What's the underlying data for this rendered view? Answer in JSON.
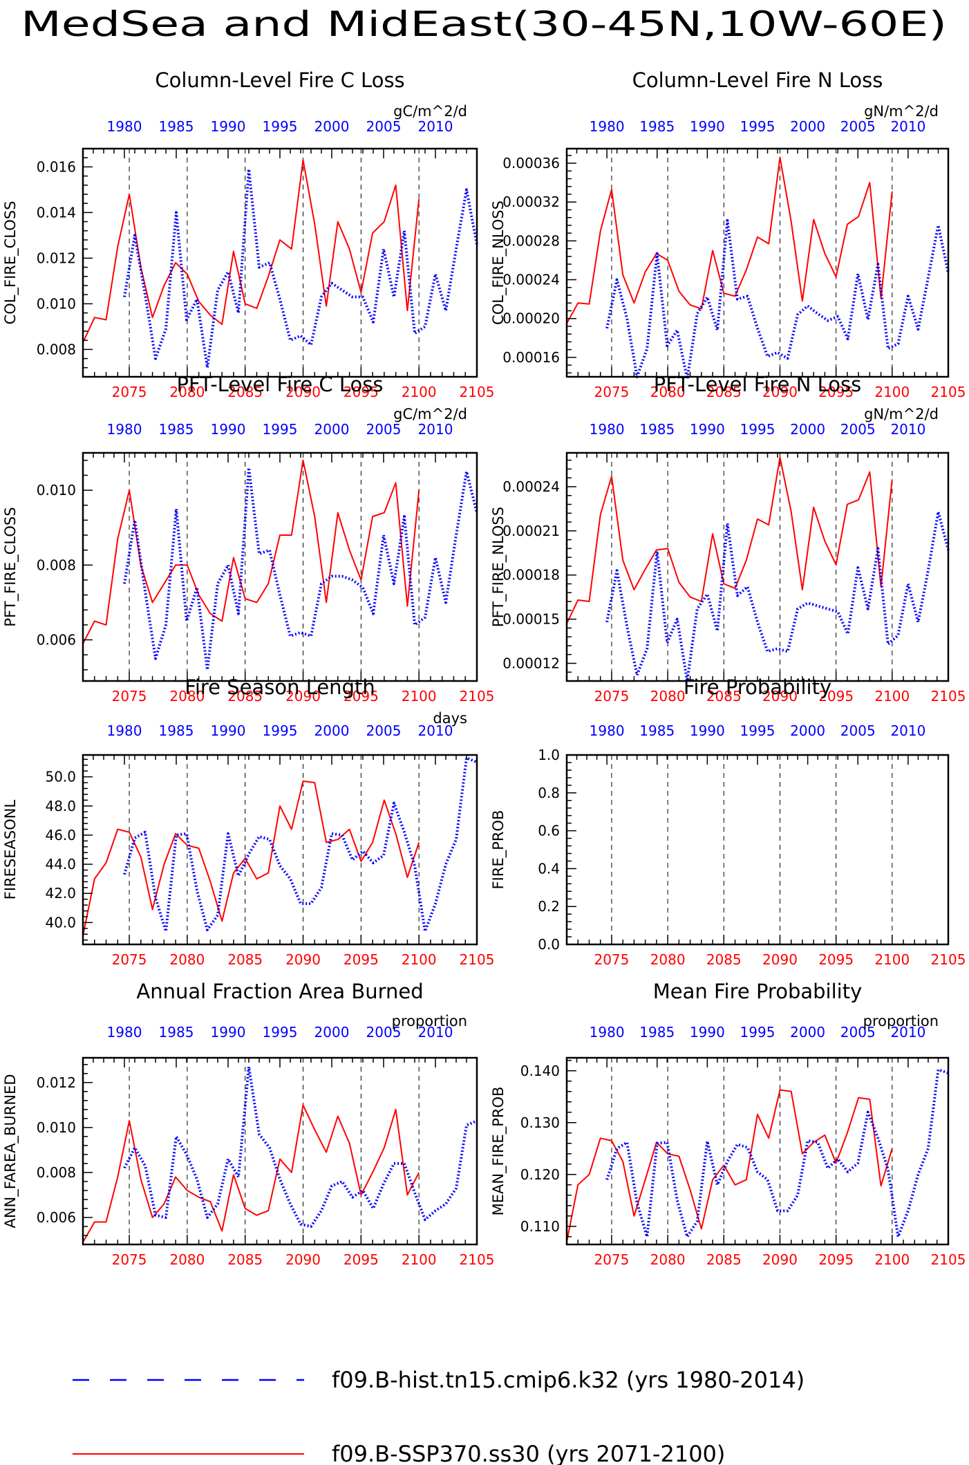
{
  "title": "MedSea and MidEast(30-45N,10W-60E)",
  "legend": [
    {
      "label": "f09.B-hist.tn15.cmip6.k32 (yrs 1980-2014)",
      "color": "#0000ff",
      "dash": true
    },
    {
      "label": "f09.B-SSP370.ss30 (yrs 2071-2100)",
      "color": "#ff0000",
      "dash": false
    }
  ],
  "colors": {
    "hist": "#0000ff",
    "future": "#ff0000"
  },
  "chart_data": [
    {
      "type": "line",
      "title": "Column-Level Fire C Loss",
      "ylabel": "COL_FIRE_CLOSS",
      "units": "gC/m^2/d",
      "ylim": [
        0.0068,
        0.0168
      ],
      "yticks": [
        0.008,
        0.01,
        0.012,
        0.014,
        0.016
      ],
      "ytick_labels": [
        "0.008",
        "0.010",
        "0.012",
        "0.014",
        "0.016"
      ],
      "x_bottom": {
        "range": [
          2071,
          2105
        ],
        "ticks": [
          2075,
          2080,
          2085,
          2090,
          2095,
          2100,
          2105
        ]
      },
      "x_top": {
        "range": [
          1976,
          2014
        ],
        "ticks": [
          1980,
          1985,
          1990,
          1995,
          2000,
          2005,
          2010
        ]
      },
      "series": [
        {
          "x_start": 2071,
          "values": [
            0.0083,
            0.0094,
            0.0093,
            0.0125,
            0.0148,
            0.0116,
            0.0094,
            0.0108,
            0.0118,
            0.0113,
            0.0101,
            0.0095,
            0.0091,
            0.0123,
            0.01,
            0.0098,
            0.0112,
            0.0128,
            0.0124,
            0.0163,
            0.0135,
            0.0099,
            0.0136,
            0.0124,
            0.0105,
            0.0131,
            0.0136,
            0.0152,
            0.0097,
            0.0146
          ]
        },
        {
          "x_start": 1980,
          "values": [
            0.0103,
            0.013,
            0.0104,
            0.0076,
            0.0089,
            0.014,
            0.0093,
            0.0102,
            0.0072,
            0.0106,
            0.0114,
            0.0096,
            0.0159,
            0.0116,
            0.0118,
            0.0102,
            0.0084,
            0.0086,
            0.0082,
            0.0103,
            0.0109,
            0.0106,
            0.0103,
            0.0103,
            0.0092,
            0.0124,
            0.0103,
            0.0132,
            0.0087,
            0.009,
            0.0113,
            0.0097,
            0.0124,
            0.015,
            0.0126
          ]
        }
      ]
    },
    {
      "type": "line",
      "title": "Column-Level Fire N Loss",
      "ylabel": "COL_FIRE_NLOSS",
      "units": "gN/m^2/d",
      "ylim": [
        0.00014,
        0.000375
      ],
      "yticks": [
        0.00016,
        0.0002,
        0.00024,
        0.00028,
        0.00032,
        0.00036
      ],
      "ytick_labels": [
        "0.00016",
        "0.00020",
        "0.00024",
        "0.00028",
        "0.00032",
        "0.00036"
      ],
      "x_bottom": {
        "range": [
          2071,
          2105
        ],
        "ticks": [
          2075,
          2080,
          2085,
          2090,
          2095,
          2100,
          2105
        ]
      },
      "x_top": {
        "range": [
          1976,
          2014
        ],
        "ticks": [
          1980,
          1985,
          1990,
          1995,
          2000,
          2005,
          2010
        ]
      },
      "series": [
        {
          "x_start": 2071,
          "values": [
            0.000195,
            0.000216,
            0.000215,
            0.00029,
            0.000333,
            0.000245,
            0.000216,
            0.000248,
            0.000267,
            0.00026,
            0.000228,
            0.000214,
            0.00021,
            0.00027,
            0.000226,
            0.000223,
            0.00025,
            0.000284,
            0.000277,
            0.000366,
            0.0003,
            0.000218,
            0.000302,
            0.000267,
            0.000243,
            0.000297,
            0.000305,
            0.00034,
            0.000221,
            0.000331
          ]
        },
        {
          "x_start": 1980,
          "values": [
            0.00019,
            0.00024,
            0.0002,
            0.00014,
            0.000169,
            0.000267,
            0.000172,
            0.000188,
            0.000138,
            0.000205,
            0.000222,
            0.000188,
            0.000301,
            0.00022,
            0.000223,
            0.00019,
            0.000161,
            0.000165,
            0.000159,
            0.000204,
            0.000213,
            0.000205,
            0.000198,
            0.000202,
            0.000179,
            0.000246,
            0.000199,
            0.000256,
            0.000169,
            0.000174,
            0.000223,
            0.000189,
            0.000242,
            0.000296,
            0.000247
          ]
        }
      ]
    },
    {
      "type": "line",
      "title": "PFT-Level Fire C Loss",
      "ylabel": "PFT_FIRE_CLOSS",
      "units": "gC/m^2/d",
      "ylim": [
        0.0049,
        0.011
      ],
      "yticks": [
        0.006,
        0.008,
        0.01
      ],
      "ytick_labels": [
        "0.006",
        "0.008",
        "0.010"
      ],
      "x_bottom": {
        "range": [
          2071,
          2105
        ],
        "ticks": [
          2075,
          2080,
          2085,
          2090,
          2095,
          2100,
          2105
        ]
      },
      "x_top": {
        "range": [
          1976,
          2014
        ],
        "ticks": [
          1980,
          1985,
          1990,
          1995,
          2000,
          2005,
          2010
        ]
      },
      "series": [
        {
          "x_start": 2071,
          "values": [
            0.0059,
            0.0065,
            0.0064,
            0.0087,
            0.01,
            0.008,
            0.007,
            0.0075,
            0.008,
            0.008,
            0.0072,
            0.0067,
            0.0065,
            0.0082,
            0.0071,
            0.007,
            0.0075,
            0.0088,
            0.0088,
            0.0108,
            0.0093,
            0.007,
            0.0094,
            0.0084,
            0.0076,
            0.0093,
            0.0094,
            0.0102,
            0.0069,
            0.01
          ]
        },
        {
          "x_start": 1980,
          "values": [
            0.0075,
            0.0092,
            0.0073,
            0.0055,
            0.0064,
            0.0095,
            0.0065,
            0.0074,
            0.0052,
            0.0075,
            0.008,
            0.0067,
            0.0106,
            0.0083,
            0.0084,
            0.0072,
            0.0061,
            0.0062,
            0.0061,
            0.0075,
            0.0077,
            0.0077,
            0.0076,
            0.0074,
            0.0067,
            0.0088,
            0.0075,
            0.0093,
            0.0064,
            0.0066,
            0.0082,
            0.007,
            0.0088,
            0.0105,
            0.0094
          ]
        }
      ]
    },
    {
      "type": "line",
      "title": "PFT-Level Fire N Loss",
      "ylabel": "PFT_FIRE_NLOSS",
      "units": "gN/m^2/d",
      "ylim": [
        0.000108,
        0.000263
      ],
      "yticks": [
        0.00012,
        0.00015,
        0.00018,
        0.00021,
        0.00024
      ],
      "ytick_labels": [
        "0.00012",
        "0.00015",
        "0.00018",
        "0.00021",
        "0.00024"
      ],
      "x_bottom": {
        "range": [
          2071,
          2105
        ],
        "ticks": [
          2075,
          2080,
          2085,
          2090,
          2095,
          2100,
          2105
        ]
      },
      "x_top": {
        "range": [
          1976,
          2014
        ],
        "ticks": [
          1980,
          1985,
          1990,
          1995,
          2000,
          2005,
          2010
        ]
      },
      "series": [
        {
          "x_start": 2071,
          "values": [
            0.000147,
            0.000163,
            0.000162,
            0.000221,
            0.000247,
            0.00019,
            0.00017,
            0.000184,
            0.000197,
            0.000198,
            0.000175,
            0.000165,
            0.000162,
            0.000208,
            0.000174,
            0.000171,
            0.00019,
            0.000218,
            0.000214,
            0.00026,
            0.000223,
            0.00017,
            0.000226,
            0.000203,
            0.000187,
            0.000228,
            0.000231,
            0.00025,
            0.000172,
            0.000245
          ]
        },
        {
          "x_start": 1980,
          "values": [
            0.000148,
            0.000183,
            0.000145,
            0.000112,
            0.00013,
            0.000196,
            0.000134,
            0.00015,
            0.000108,
            0.000157,
            0.000167,
            0.000142,
            0.000215,
            0.000166,
            0.000172,
            0.000148,
            0.000128,
            0.00013,
            0.000128,
            0.000157,
            0.000161,
            0.000159,
            0.000157,
            0.000155,
            0.00014,
            0.000185,
            0.000157,
            0.000198,
            0.000133,
            0.000139,
            0.000174,
            0.000148,
            0.000183,
            0.000223,
            0.000197
          ]
        }
      ]
    },
    {
      "type": "line",
      "title": "Fire Season Length",
      "ylabel": "FIRESEASONL",
      "units": "days",
      "ylim": [
        38.5,
        51.5
      ],
      "yticks": [
        40,
        42,
        44,
        46,
        48,
        50
      ],
      "ytick_labels": [
        "40.0",
        "42.0",
        "44.0",
        "46.0",
        "48.0",
        "50.0"
      ],
      "x_bottom": {
        "range": [
          2071,
          2105
        ],
        "ticks": [
          2075,
          2080,
          2085,
          2090,
          2095,
          2100,
          2105
        ]
      },
      "x_top": {
        "range": [
          1976,
          2014
        ],
        "ticks": [
          1980,
          1985,
          1990,
          1995,
          2000,
          2005,
          2010
        ]
      },
      "series": [
        {
          "x_start": 2071,
          "values": [
            39.1,
            43.0,
            44.1,
            46.4,
            46.2,
            44.5,
            40.9,
            44.0,
            46.1,
            45.3,
            45.1,
            42.8,
            40.1,
            43.4,
            44.4,
            43.0,
            43.4,
            48.0,
            46.4,
            49.7,
            49.6,
            45.5,
            45.7,
            46.4,
            44.2,
            45.5,
            48.4,
            46.1,
            43.1,
            45.5
          ]
        },
        {
          "x_start": 1980,
          "values": [
            43.3,
            45.8,
            46.2,
            41.7,
            39.4,
            46.0,
            46.1,
            42.2,
            39.5,
            40.5,
            46.1,
            43.2,
            44.7,
            45.9,
            45.7,
            43.9,
            43.0,
            41.3,
            41.3,
            42.4,
            46.1,
            46.0,
            44.3,
            44.9,
            44.1,
            44.6,
            48.2,
            46.2,
            43.9,
            39.4,
            41.3,
            44.0,
            45.7,
            51.3,
            51.0
          ]
        }
      ]
    },
    {
      "type": "line",
      "title": "Fire Probability",
      "ylabel": "FIRE_PROB",
      "units": "",
      "ylim": [
        0.0,
        1.0
      ],
      "yticks": [
        0.0,
        0.2,
        0.4,
        0.6,
        0.8,
        1.0
      ],
      "ytick_labels": [
        "0.0",
        "0.2",
        "0.4",
        "0.6",
        "0.8",
        "1.0"
      ],
      "x_bottom": {
        "range": [
          2071,
          2105
        ],
        "ticks": [
          2075,
          2080,
          2085,
          2090,
          2095,
          2100,
          2105
        ]
      },
      "x_top": {
        "range": [
          1976,
          2014
        ],
        "ticks": [
          1980,
          1985,
          1990,
          1995,
          2000,
          2005,
          2010
        ]
      },
      "series": []
    },
    {
      "type": "line",
      "title": "Annual Fraction Area Burned",
      "ylabel": "ANN_FAREA_BURNED",
      "units": "proportion",
      "ylim": [
        0.0048,
        0.0131
      ],
      "yticks": [
        0.006,
        0.008,
        0.01,
        0.012
      ],
      "ytick_labels": [
        "0.006",
        "0.008",
        "0.010",
        "0.012"
      ],
      "x_bottom": {
        "range": [
          2071,
          2105
        ],
        "ticks": [
          2075,
          2080,
          2085,
          2090,
          2095,
          2100,
          2105
        ]
      },
      "x_top": {
        "range": [
          1976,
          2014
        ],
        "ticks": [
          1980,
          1985,
          1990,
          1995,
          2000,
          2005,
          2010
        ]
      },
      "series": [
        {
          "x_start": 2071,
          "values": [
            0.0049,
            0.0058,
            0.0058,
            0.0078,
            0.0103,
            0.0077,
            0.006,
            0.0066,
            0.0078,
            0.0072,
            0.0069,
            0.0067,
            0.0054,
            0.0079,
            0.0064,
            0.0061,
            0.0063,
            0.0086,
            0.008,
            0.011,
            0.0099,
            0.0089,
            0.0105,
            0.0093,
            0.007,
            0.008,
            0.0091,
            0.0108,
            0.007,
            0.008
          ]
        },
        {
          "x_start": 1980,
          "values": [
            0.0082,
            0.0091,
            0.0083,
            0.0061,
            0.006,
            0.0096,
            0.0088,
            0.0077,
            0.006,
            0.0066,
            0.0086,
            0.0078,
            0.0127,
            0.0097,
            0.0091,
            0.0077,
            0.0066,
            0.0057,
            0.0056,
            0.0063,
            0.0074,
            0.0076,
            0.0069,
            0.0072,
            0.0064,
            0.0075,
            0.0084,
            0.0084,
            0.0071,
            0.0059,
            0.0063,
            0.0066,
            0.0073,
            0.0101,
            0.0103
          ]
        }
      ]
    },
    {
      "type": "line",
      "title": "Mean Fire Probability",
      "ylabel": "MEAN_FIRE_PROB",
      "units": "proportion",
      "ylim": [
        0.1065,
        0.1425
      ],
      "yticks": [
        0.11,
        0.12,
        0.13,
        0.14
      ],
      "ytick_labels": [
        "0.110",
        "0.120",
        "0.130",
        "0.140"
      ],
      "x_bottom": {
        "range": [
          2071,
          2105
        ],
        "ticks": [
          2075,
          2080,
          2085,
          2090,
          2095,
          2100,
          2105
        ]
      },
      "x_top": {
        "range": [
          1976,
          2014
        ],
        "ticks": [
          1980,
          1985,
          1990,
          1995,
          2000,
          2005,
          2010
        ]
      },
      "series": [
        {
          "x_start": 2071,
          "values": [
            0.107,
            0.118,
            0.12,
            0.127,
            0.1265,
            0.1225,
            0.112,
            0.119,
            0.1262,
            0.124,
            0.1235,
            0.117,
            0.1095,
            0.119,
            0.1218,
            0.118,
            0.119,
            0.1316,
            0.127,
            0.1363,
            0.136,
            0.124,
            0.1262,
            0.1276,
            0.1222,
            0.128,
            0.1348,
            0.1345,
            0.1178,
            0.125
          ]
        },
        {
          "x_start": 1980,
          "values": [
            0.119,
            0.125,
            0.1262,
            0.1145,
            0.108,
            0.126,
            0.1262,
            0.115,
            0.108,
            0.111,
            0.1264,
            0.118,
            0.1225,
            0.1258,
            0.1252,
            0.1205,
            0.119,
            0.113,
            0.113,
            0.116,
            0.1265,
            0.1262,
            0.1212,
            0.123,
            0.1205,
            0.1222,
            0.132,
            0.127,
            0.121,
            0.108,
            0.113,
            0.12,
            0.125,
            0.1402,
            0.1396
          ]
        }
      ]
    }
  ]
}
